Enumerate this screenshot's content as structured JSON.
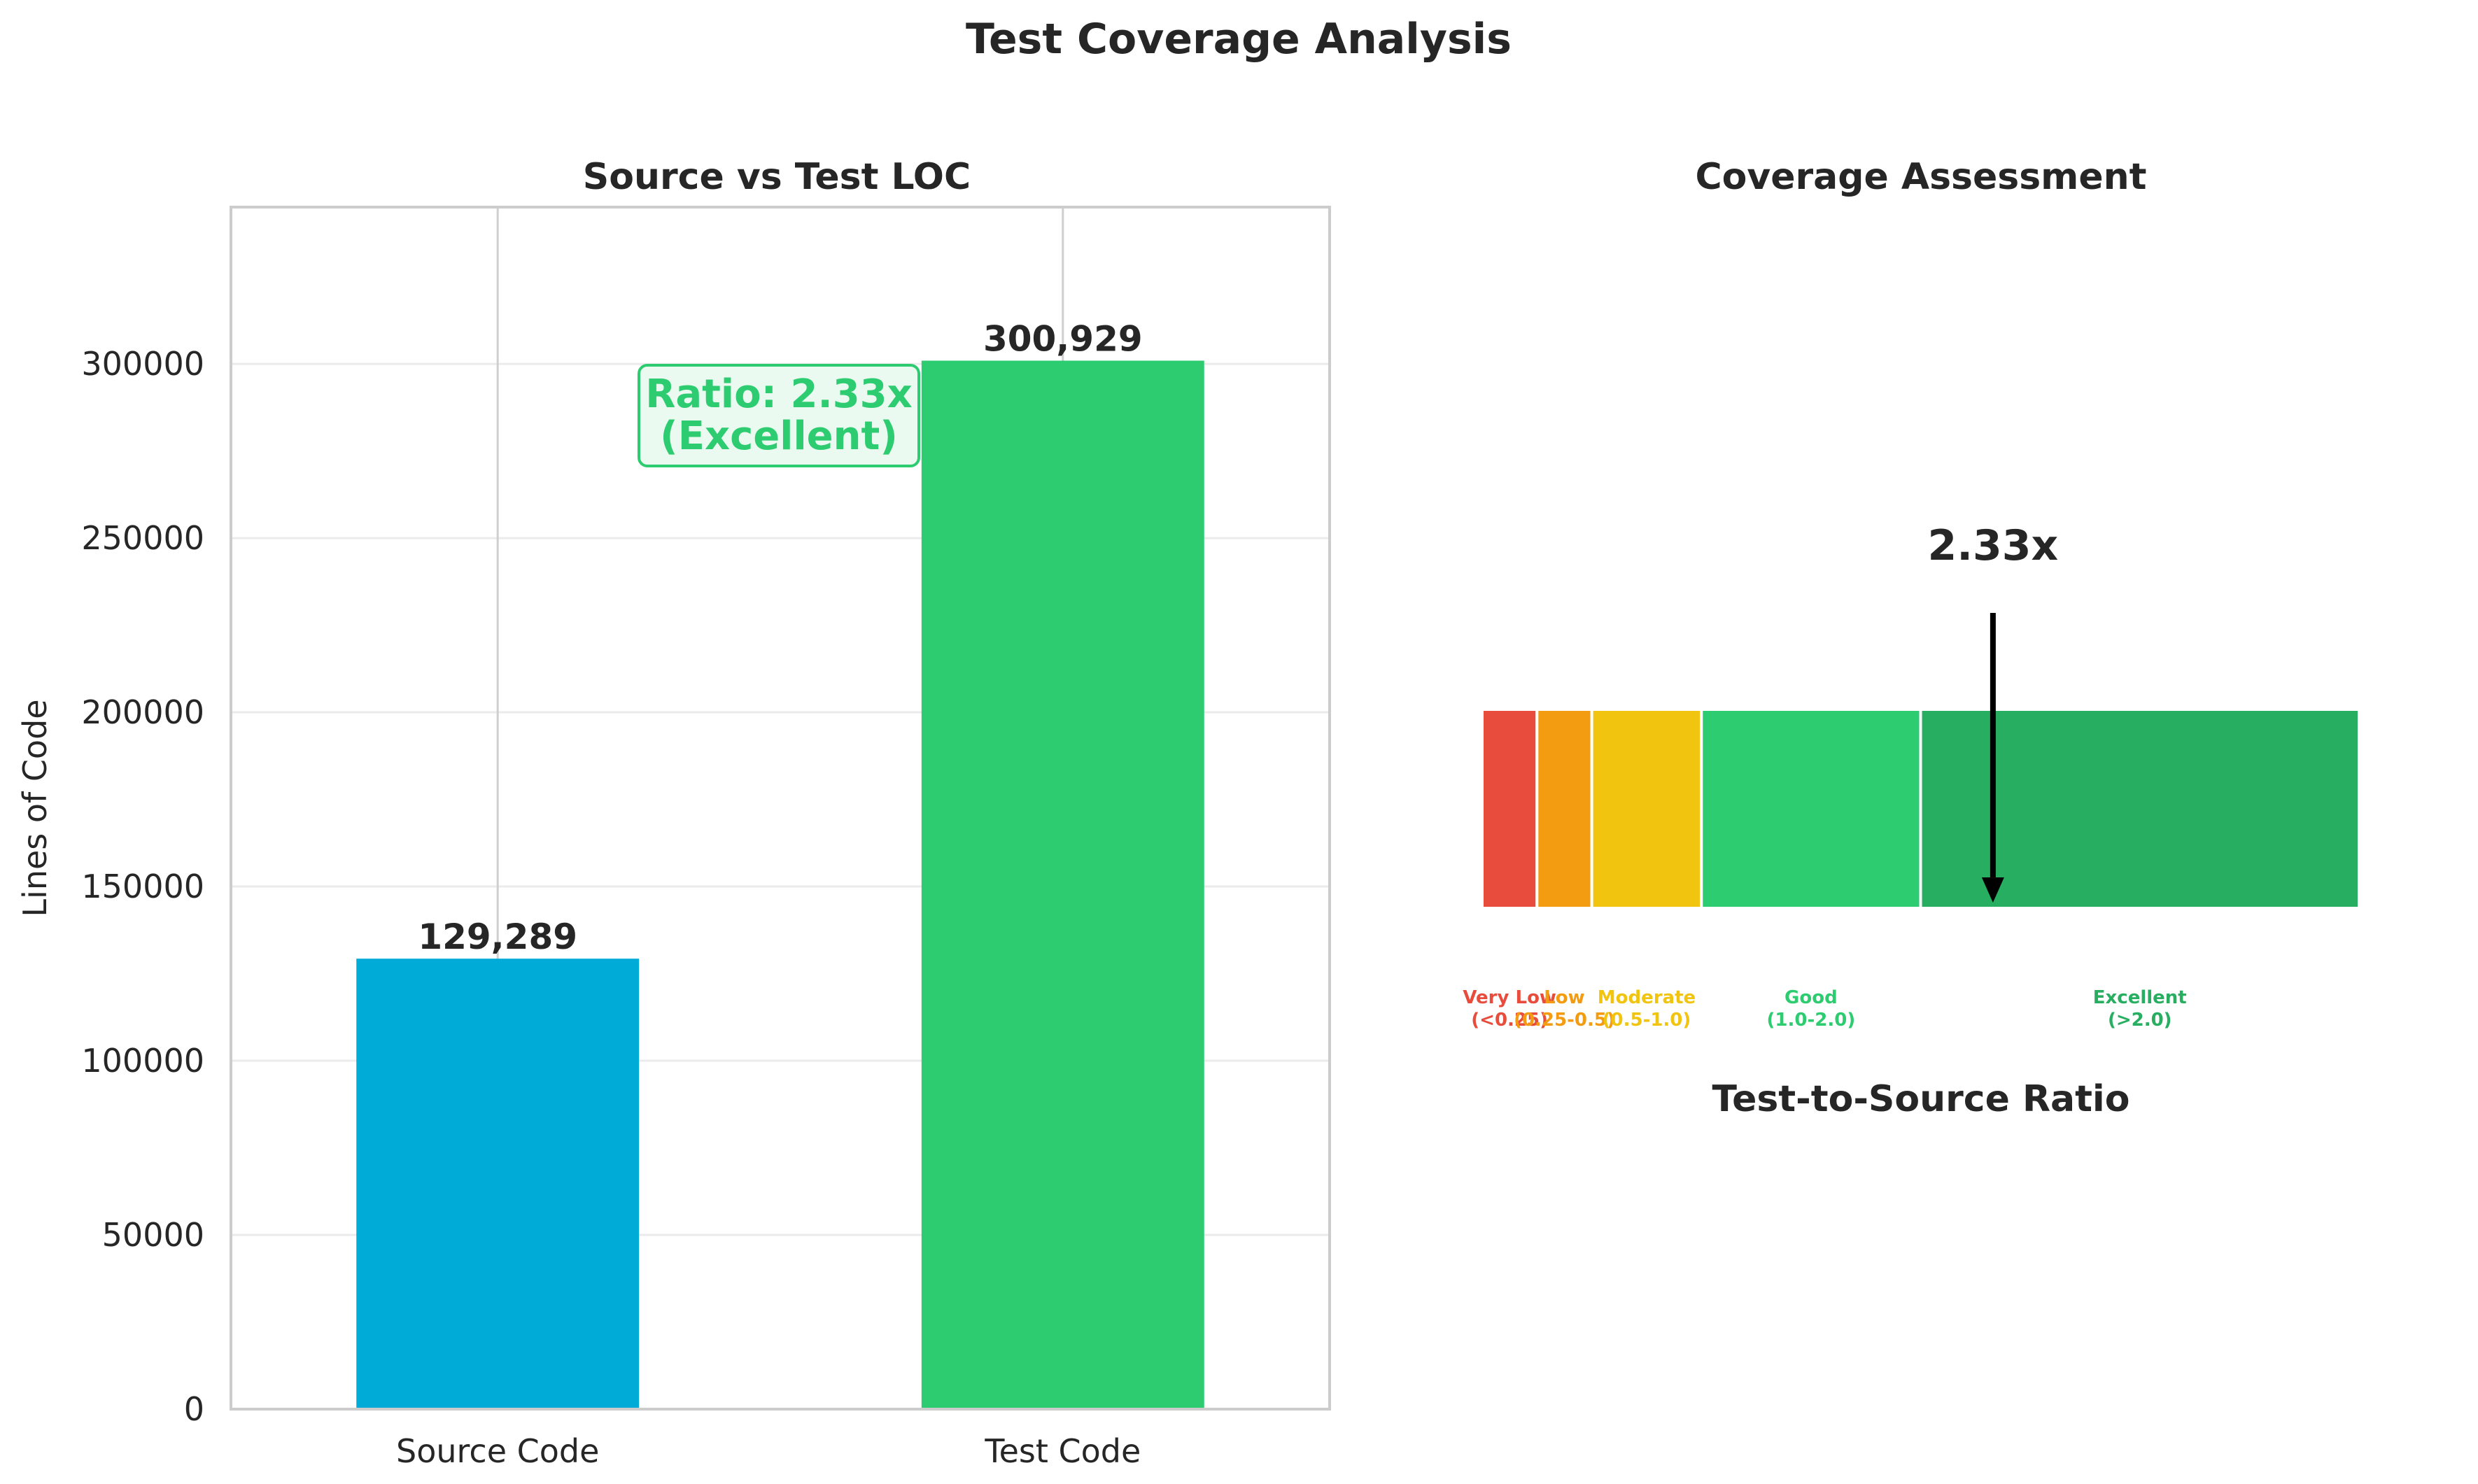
{
  "figure_title": "Test Coverage Analysis",
  "chart_data": [
    {
      "type": "bar",
      "title": "Source vs Test LOC",
      "xlabel": "",
      "ylabel": "Lines of Code",
      "categories": [
        "Source Code",
        "Test Code"
      ],
      "values": [
        129289,
        300929
      ],
      "value_labels": [
        "129,289",
        "300,929"
      ],
      "colors": [
        "#00acd7",
        "#2ecc71"
      ],
      "ylim": [
        0,
        345000
      ],
      "yticks": [
        0,
        50000,
        100000,
        150000,
        200000,
        250000,
        300000
      ],
      "ytick_labels": [
        "0",
        "50000",
        "100000",
        "150000",
        "200000",
        "250000",
        "300000"
      ],
      "grid": true,
      "annotation": {
        "lines": [
          "Ratio: 2.33x",
          "(Excellent)"
        ],
        "color": "#2ecc71",
        "background": "#eafaf0"
      }
    },
    {
      "type": "bar",
      "title": "Coverage Assessment",
      "xlabel": "Test-to-Source Ratio",
      "xlim": [
        0,
        4.0
      ],
      "bands": [
        {
          "name": "Very Low",
          "range_label": "(<0.25)",
          "start": 0,
          "end": 0.25,
          "color": "#e74c3c"
        },
        {
          "name": "Low",
          "range_label": "(0.25-0.5)",
          "start": 0.25,
          "end": 0.5,
          "color": "#f39c12"
        },
        {
          "name": "Moderate",
          "range_label": "(0.5-1.0)",
          "start": 0.5,
          "end": 1.0,
          "color": "#f1c40f"
        },
        {
          "name": "Good",
          "range_label": "(1.0-2.0)",
          "start": 1.0,
          "end": 2.0,
          "color": "#2ecc71"
        },
        {
          "name": "Excellent",
          "range_label": "(>2.0)",
          "start": 2.0,
          "end": 4.0,
          "color": "#27ae60"
        }
      ],
      "band_label_colors": [
        "#e74c3c",
        "#f39c12",
        "#f1c40f",
        "#2ecc71",
        "#27ae60"
      ],
      "marker": {
        "value": 2.33,
        "label": "2.33x"
      }
    }
  ]
}
